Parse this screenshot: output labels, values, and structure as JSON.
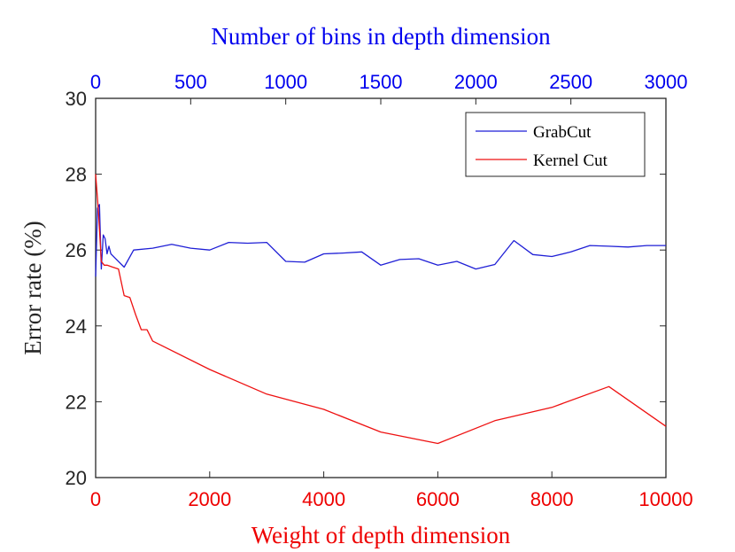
{
  "chart_data": {
    "type": "line",
    "top_xlabel": "Number of bins in depth dimension",
    "xlabel": "Weight of depth dimension",
    "ylabel": "Error rate (%)",
    "xlim": [
      0,
      10000
    ],
    "top_xlim": [
      0,
      3000
    ],
    "ylim": [
      20,
      30
    ],
    "xticks": [
      0,
      2000,
      4000,
      6000,
      8000,
      10000
    ],
    "top_xticks": [
      0,
      500,
      1000,
      1500,
      2000,
      2500,
      3000
    ],
    "yticks": [
      20,
      22,
      24,
      26,
      28,
      30
    ],
    "legend_position": "top-right",
    "colors": {
      "top_axis": "#0000ee",
      "bottom_axis": "#ee0000",
      "left_axis": "#262626"
    },
    "series": [
      {
        "name": "GrabCut",
        "axis": "top",
        "color": "#1f1fd6",
        "x": [
          0,
          10,
          20,
          30,
          40,
          50,
          60,
          70,
          80,
          90,
          100,
          150,
          200,
          300,
          400,
          500,
          600,
          700,
          800,
          900,
          1000,
          1100,
          1200,
          1300,
          1400,
          1500,
          1600,
          1700,
          1800,
          1900,
          2000,
          2100,
          2200,
          2300,
          2400,
          2500,
          2600,
          2700,
          2800,
          2900,
          3000
        ],
        "values": [
          25.3,
          27.1,
          27.2,
          25.5,
          26.4,
          26.3,
          25.9,
          26.1,
          25.9,
          25.85,
          25.8,
          25.55,
          26.0,
          26.05,
          26.15,
          26.05,
          26.0,
          26.2,
          26.18,
          26.2,
          25.7,
          25.68,
          25.9,
          25.92,
          25.95,
          25.6,
          25.75,
          25.77,
          25.6,
          25.7,
          25.5,
          25.62,
          26.25,
          25.88,
          25.83,
          25.95,
          26.12,
          26.1,
          26.08,
          26.12,
          26.12
        ]
      },
      {
        "name": "Kernel Cut",
        "axis": "bottom",
        "color": "#ee1111",
        "x": [
          0,
          50,
          100,
          150,
          200,
          300,
          400,
          500,
          600,
          700,
          800,
          900,
          1000,
          2000,
          3000,
          4000,
          5000,
          6000,
          7000,
          8000,
          9000,
          10000
        ],
        "values": [
          28.0,
          27.0,
          25.7,
          25.6,
          25.6,
          25.55,
          25.5,
          24.8,
          24.75,
          24.3,
          23.9,
          23.9,
          23.6,
          22.85,
          22.2,
          21.8,
          21.2,
          20.9,
          21.5,
          21.85,
          22.4,
          21.35
        ]
      }
    ]
  }
}
